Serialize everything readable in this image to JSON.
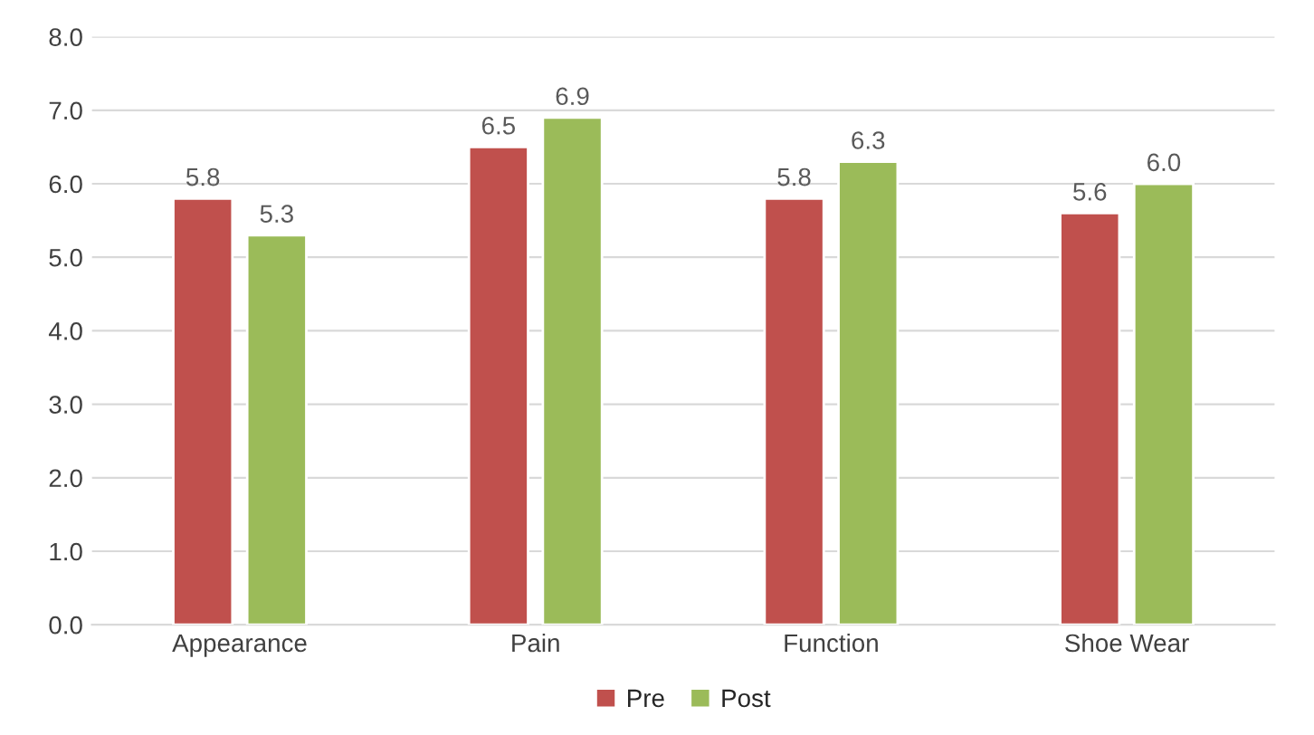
{
  "chart_data": {
    "type": "bar",
    "categories": [
      "Appearance",
      "Pain",
      "Function",
      "Shoe Wear"
    ],
    "series": [
      {
        "name": "Pre",
        "color": "#c0504d",
        "values": [
          5.8,
          6.5,
          5.8,
          5.6
        ]
      },
      {
        "name": "Post",
        "color": "#9bbb59",
        "values": [
          5.3,
          6.9,
          6.3,
          6.0
        ]
      }
    ],
    "ylim": [
      0,
      8
    ],
    "yticks": [
      {
        "value": 0,
        "label": "0.0"
      },
      {
        "value": 1,
        "label": "1.0"
      },
      {
        "value": 2,
        "label": "2.0"
      },
      {
        "value": 3,
        "label": "3.0"
      },
      {
        "value": 4,
        "label": "4.0"
      },
      {
        "value": 5,
        "label": "5.0"
      },
      {
        "value": 6,
        "label": "6.0"
      },
      {
        "value": 7,
        "label": "7.0"
      },
      {
        "value": 8,
        "label": "8.0"
      }
    ],
    "grid": "y",
    "legend": "bottom",
    "value_labels": [
      [
        "5.8",
        "6.5",
        "5.8",
        "5.6"
      ],
      [
        "5.3",
        "6.9",
        "6.3",
        "6.0"
      ]
    ]
  }
}
